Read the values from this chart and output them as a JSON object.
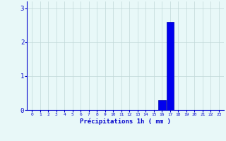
{
  "hours": [
    0,
    1,
    2,
    3,
    4,
    5,
    6,
    7,
    8,
    9,
    10,
    11,
    12,
    13,
    14,
    15,
    16,
    17,
    18,
    19,
    20,
    21,
    22,
    23
  ],
  "values": [
    0,
    0,
    0,
    0,
    0,
    0,
    0,
    0,
    0,
    0,
    0,
    0,
    0,
    0,
    0,
    0,
    0.3,
    2.6,
    0,
    0,
    0,
    0,
    0,
    0
  ],
  "bar_color": "#0000ee",
  "bar_edge_color": "#0000aa",
  "background_color": "#e8f8f8",
  "grid_color": "#c0d8d8",
  "xlabel": "Précipitations 1h ( mm )",
  "xlabel_color": "#0000cc",
  "tick_color": "#0000cc",
  "ylim": [
    0,
    3.2
  ],
  "yticks": [
    0,
    1,
    2,
    3
  ],
  "figwidth": 3.2,
  "figheight": 2.0,
  "dpi": 100
}
